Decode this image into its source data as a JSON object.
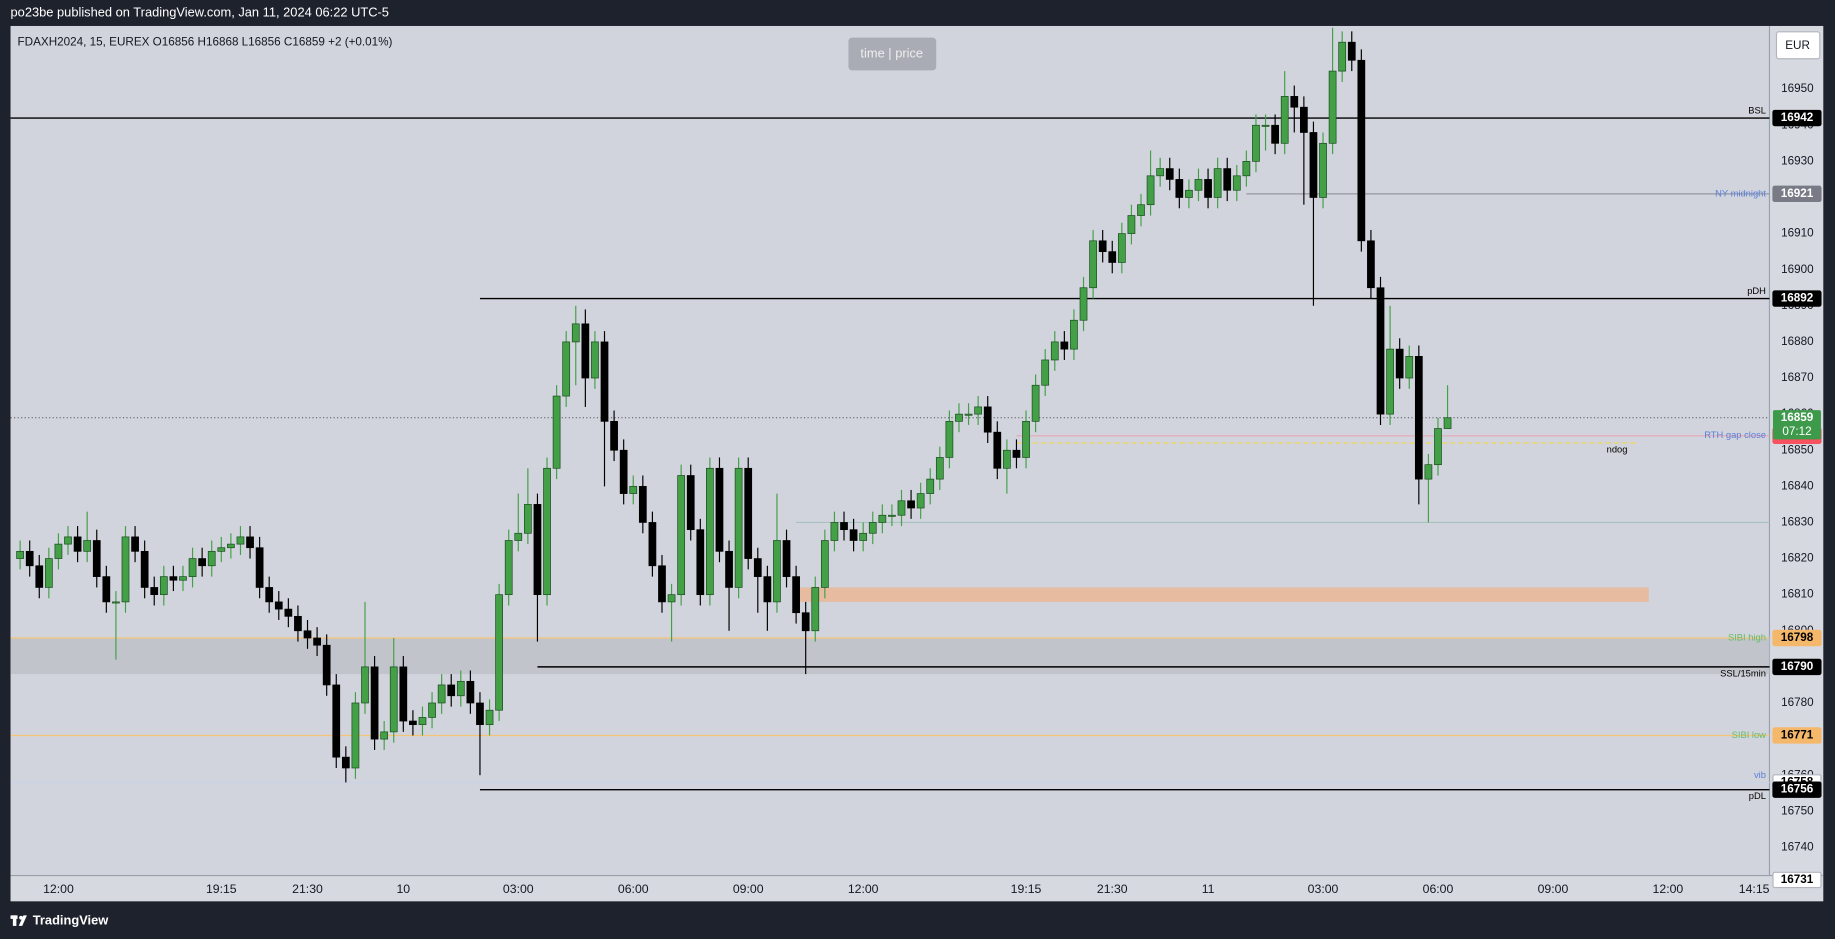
{
  "header": "po23be published on TradingView.com, Jan 11, 2024 06:22 UTC-5",
  "footer": "TradingView",
  "chart_data": {
    "type": "candlestick",
    "legend_text": "FDAXH2024, 15, EUREX  O16856  H16868  L16856  C16859  +2 (+0.01%)",
    "watermark": "time | price",
    "currency": "EUR",
    "up_color": "#43a047",
    "down_color": "#000000",
    "background": "#d1d4dc",
    "grid": false,
    "xlim": [
      -5,
      178.6
    ],
    "ylim": [
      16732.2,
      16967.5
    ],
    "xticks": [
      {
        "value": 0,
        "label": "12:00"
      },
      {
        "value": 17,
        "label": "19:15"
      },
      {
        "value": 26,
        "label": "21:30"
      },
      {
        "value": 36,
        "label": "10"
      },
      {
        "value": 48,
        "label": "03:00"
      },
      {
        "value": 60,
        "label": "06:00"
      },
      {
        "value": 72,
        "label": "09:00"
      },
      {
        "value": 84,
        "label": "12:00"
      },
      {
        "value": 101,
        "label": "19:15"
      },
      {
        "value": 110,
        "label": "21:30"
      },
      {
        "value": 120,
        "label": "11"
      },
      {
        "value": 132,
        "label": "03:00"
      },
      {
        "value": 144,
        "label": "06:00"
      },
      {
        "value": 156,
        "label": "09:00"
      },
      {
        "value": 168,
        "label": "12:00"
      },
      {
        "value": 177,
        "label": "14:15"
      }
    ],
    "yticks": [
      16740,
      16750,
      16760,
      16770,
      16780,
      16790,
      16800,
      16810,
      16820,
      16830,
      16840,
      16850,
      16860,
      16870,
      16880,
      16890,
      16900,
      16910,
      16920,
      16930,
      16940,
      16950
    ],
    "x": [
      -4,
      -3,
      -2,
      -1,
      0,
      1,
      2,
      3,
      4,
      5,
      6,
      7,
      8,
      9,
      10,
      11,
      12,
      13,
      14,
      15,
      16,
      17,
      18,
      19,
      20,
      21,
      22,
      23,
      24,
      25,
      26,
      27,
      28,
      29,
      30,
      31,
      32,
      33,
      34,
      35,
      36,
      37,
      38,
      39,
      40,
      41,
      42,
      43,
      44,
      45,
      46,
      47,
      48,
      49,
      50,
      51,
      52,
      53,
      54,
      55,
      56,
      57,
      58,
      59,
      60,
      61,
      62,
      63,
      64,
      65,
      66,
      67,
      68,
      69,
      70,
      71,
      72,
      73,
      74,
      75,
      76,
      77,
      78,
      79,
      80,
      81,
      82,
      83,
      84,
      85,
      86,
      87,
      88,
      89,
      90,
      91,
      92,
      93,
      94,
      95,
      96,
      97,
      98,
      99,
      100,
      101,
      102,
      103,
      104,
      105,
      106,
      107,
      108,
      109,
      110,
      111,
      112,
      113,
      114,
      115,
      116,
      117,
      118,
      119,
      120,
      121,
      122,
      123,
      124,
      125,
      126,
      127,
      128,
      129,
      130,
      131,
      132,
      133,
      134,
      135,
      136,
      137,
      138,
      139,
      140,
      141,
      142,
      143,
      144,
      145
    ],
    "open": [
      16820,
      16822,
      16818,
      16812,
      16820,
      16824,
      16826,
      16822,
      16825,
      16815,
      16808,
      16808,
      16826,
      16822,
      16812,
      16810,
      16815,
      16814,
      16815,
      16820,
      16818,
      16822,
      16823,
      16824,
      16826,
      16823,
      16812,
      16808,
      16806,
      16804,
      16800,
      16798,
      16796,
      16785,
      16765,
      16762,
      16780,
      16790,
      16770,
      16772,
      16790,
      16775,
      16774,
      16776,
      16780,
      16785,
      16782,
      16786,
      16780,
      16774,
      16778,
      16810,
      16825,
      16827,
      16835,
      16810,
      16845,
      16865,
      16880,
      16885,
      16870,
      16880,
      16858,
      16850,
      16838,
      16840,
      16830,
      16818,
      16808,
      16810,
      16843,
      16828,
      16810,
      16845,
      16822,
      16812,
      16845,
      16820,
      16815,
      16808,
      16825,
      16815,
      16805,
      16800,
      16812,
      16825,
      16830,
      16828,
      16825,
      16827,
      16830,
      16832,
      16832,
      16836,
      16834,
      16838,
      16842,
      16848,
      16858,
      16860,
      16860,
      16862,
      16855,
      16845,
      16850,
      16848,
      16858,
      16868,
      16875,
      16880,
      16878,
      16886,
      16895,
      16908,
      16905,
      16902,
      16910,
      16915,
      16918,
      16926,
      16928,
      16925,
      16920,
      16922,
      16925,
      16920,
      16928,
      16922,
      16926,
      16930,
      16940,
      16940,
      16935,
      16948,
      16945,
      16938,
      16920,
      16935,
      16955,
      16963,
      16958,
      16908,
      16895,
      16860,
      16878,
      16870,
      16876,
      16842,
      16846,
      16856
    ],
    "high": [
      16825,
      16825,
      16821,
      16823,
      16827,
      16829,
      16829,
      16833,
      16828,
      16818,
      16811,
      16829,
      16829,
      16825,
      16815,
      16818,
      16818,
      16818,
      16823,
      16823,
      16825,
      16826,
      16827,
      16829,
      16829,
      16826,
      16815,
      16811,
      16809,
      16807,
      16803,
      16801,
      16799,
      16788,
      16768,
      16783,
      16808,
      16793,
      16775,
      16798,
      16793,
      16778,
      16779,
      16783,
      16788,
      16788,
      16789,
      16789,
      16783,
      16781,
      16813,
      16828,
      16838,
      16845,
      16838,
      16848,
      16868,
      16883,
      16890,
      16889,
      16883,
      16883,
      16861,
      16853,
      16843,
      16843,
      16833,
      16821,
      16813,
      16846,
      16846,
      16831,
      16848,
      16848,
      16825,
      16848,
      16848,
      16823,
      16818,
      16838,
      16828,
      16818,
      16808,
      16815,
      16828,
      16833,
      16833,
      16831,
      16830,
      16833,
      16835,
      16835,
      16839,
      16839,
      16841,
      16845,
      16851,
      16861,
      16863,
      16863,
      16865,
      16865,
      16858,
      16853,
      16853,
      16861,
      16871,
      16878,
      16883,
      16883,
      16889,
      16898,
      16911,
      16911,
      16908,
      16913,
      16918,
      16921,
      16933,
      16931,
      16931,
      16928,
      16925,
      16928,
      16928,
      16931,
      16931,
      16929,
      16933,
      16943,
      16943,
      16943,
      16955,
      16951,
      16948,
      16941,
      16938,
      16967,
      16966,
      16966,
      16961,
      16911,
      16898,
      16890,
      16881,
      16879,
      16879,
      16849,
      16859,
      16868
    ],
    "low": [
      16817,
      16815,
      16809,
      16809,
      16817,
      16821,
      16819,
      16819,
      16812,
      16805,
      16792,
      16805,
      16819,
      16809,
      16807,
      16807,
      16811,
      16811,
      16812,
      16815,
      16815,
      16819,
      16820,
      16821,
      16820,
      16809,
      16805,
      16803,
      16801,
      16797,
      16795,
      16793,
      16782,
      16762,
      16758,
      16759,
      16777,
      16767,
      16767,
      16769,
      16772,
      16771,
      16771,
      16773,
      16777,
      16779,
      16779,
      16777,
      16760,
      16771,
      16775,
      16807,
      16822,
      16824,
      16797,
      16807,
      16842,
      16862,
      16868,
      16862,
      16867,
      16840,
      16847,
      16835,
      16835,
      16827,
      16815,
      16805,
      16797,
      16807,
      16825,
      16807,
      16807,
      16819,
      16800,
      16809,
      16817,
      16805,
      16800,
      16805,
      16812,
      16802,
      16788,
      16797,
      16809,
      16822,
      16825,
      16822,
      16822,
      16824,
      16827,
      16829,
      16829,
      16831,
      16831,
      16835,
      16839,
      16845,
      16855,
      16857,
      16857,
      16852,
      16842,
      16838,
      16845,
      16845,
      16855,
      16865,
      16872,
      16875,
      16875,
      16883,
      16892,
      16902,
      16899,
      16899,
      16907,
      16912,
      16915,
      16923,
      16922,
      16917,
      16917,
      16919,
      16917,
      16917,
      16919,
      16919,
      16923,
      16927,
      16933,
      16932,
      16932,
      16938,
      16918,
      16890,
      16917,
      16932,
      16952,
      16955,
      16905,
      16892,
      16857,
      16857,
      16867,
      16867,
      16835,
      16830,
      16843,
      16856
    ],
    "close": [
      16822,
      16818,
      16812,
      16820,
      16824,
      16826,
      16822,
      16825,
      16815,
      16808,
      16808,
      16826,
      16822,
      16812,
      16810,
      16815,
      16814,
      16815,
      16820,
      16818,
      16822,
      16823,
      16824,
      16826,
      16823,
      16812,
      16808,
      16806,
      16804,
      16800,
      16798,
      16796,
      16785,
      16765,
      16762,
      16780,
      16790,
      16770,
      16772,
      16790,
      16775,
      16774,
      16776,
      16780,
      16785,
      16782,
      16786,
      16780,
      16774,
      16778,
      16810,
      16825,
      16827,
      16835,
      16810,
      16845,
      16865,
      16880,
      16885,
      16870,
      16880,
      16858,
      16850,
      16838,
      16840,
      16830,
      16818,
      16808,
      16810,
      16843,
      16828,
      16810,
      16845,
      16822,
      16812,
      16845,
      16820,
      16815,
      16808,
      16825,
      16815,
      16805,
      16800,
      16812,
      16825,
      16830,
      16828,
      16825,
      16827,
      16830,
      16832,
      16832,
      16836,
      16834,
      16838,
      16842,
      16848,
      16858,
      16860,
      16860,
      16862,
      16855,
      16845,
      16850,
      16848,
      16858,
      16868,
      16875,
      16880,
      16878,
      16886,
      16895,
      16908,
      16905,
      16902,
      16910,
      16915,
      16918,
      16926,
      16928,
      16925,
      16920,
      16922,
      16925,
      16920,
      16928,
      16922,
      16926,
      16930,
      16940,
      16940,
      16935,
      16948,
      16945,
      16938,
      16920,
      16935,
      16955,
      16963,
      16958,
      16908,
      16895,
      16860,
      16878,
      16870,
      16876,
      16842,
      16846,
      16856,
      16859
    ],
    "zones": [
      {
        "low": 16788,
        "high": 16798,
        "color": "#bfc2c9"
      },
      {
        "low": 16808,
        "high": 16812,
        "from": 77,
        "to": 166,
        "color": "#e8b899"
      }
    ],
    "levels": [
      {
        "name": "BSL",
        "value": 16942,
        "color": "#000000",
        "label_color": "#000000",
        "label_side": "above",
        "tag": "#000000",
        "tag_text": "#ffffff"
      },
      {
        "name": "NY midnight",
        "value": 16921,
        "from": 124,
        "color": "#9598a1",
        "label_color": "#5c7fd8",
        "label_side": "center",
        "tag": "#787b86",
        "tag_text": "#ffffff"
      },
      {
        "name": "pDH",
        "value": 16892,
        "from": 44,
        "color": "#000000",
        "label_color": "#000000",
        "label_side": "above",
        "tag": "#000000",
        "tag_text": "#ffffff"
      },
      {
        "name": "RTH gap close",
        "value": 16854,
        "from": 100,
        "color": "#e7a7b5",
        "label_color": "#5c7fd8",
        "label_side": "center",
        "tag": "#f7525f",
        "tag_text": "#ffffff"
      },
      {
        "name": "ndog",
        "value": 16852,
        "from": 100,
        "to": 165,
        "color": "#f2d74e",
        "dashed": true,
        "label_color": "#000000",
        "label_side": "below"
      },
      {
        "value": 16830,
        "from": 77,
        "color": "#a6c2be"
      },
      {
        "name": "SIBI high",
        "value": 16798,
        "color": "#f5c477",
        "label_color": "#66bb6a",
        "label_side": "center",
        "tag": "#f5b86a",
        "tag_text": "#000000"
      },
      {
        "name": "SSL/15min",
        "value": 16790,
        "from": 50,
        "color": "#000000",
        "label_color": "#000000",
        "label_side": "below",
        "tag": "#000000",
        "tag_text": "#ffffff"
      },
      {
        "name": "SIBI low",
        "value": 16771,
        "color": "#f5c477",
        "label_color": "#66bb6a",
        "label_side": "center",
        "tag": "#f5b86a",
        "tag_text": "#000000"
      },
      {
        "name": "vib",
        "value": 16758,
        "color": "#c8d3e8",
        "label_color": "#5c7fd8",
        "label_side": "above",
        "tag": "#ffffff",
        "tag_text": "#000000"
      },
      {
        "name": "pDL",
        "value": 16756,
        "from": 44,
        "color": "#000000",
        "label_color": "#000000",
        "label_side": "below",
        "tag": "#000000",
        "tag_text": "#ffffff"
      }
    ],
    "last_price": {
      "value": 16859,
      "countdown": "07:12",
      "color": "#3d9a4a"
    },
    "axis_tags": [
      {
        "value": 16731,
        "tag": "#ffffff",
        "tag_text": "#000000"
      }
    ]
  }
}
